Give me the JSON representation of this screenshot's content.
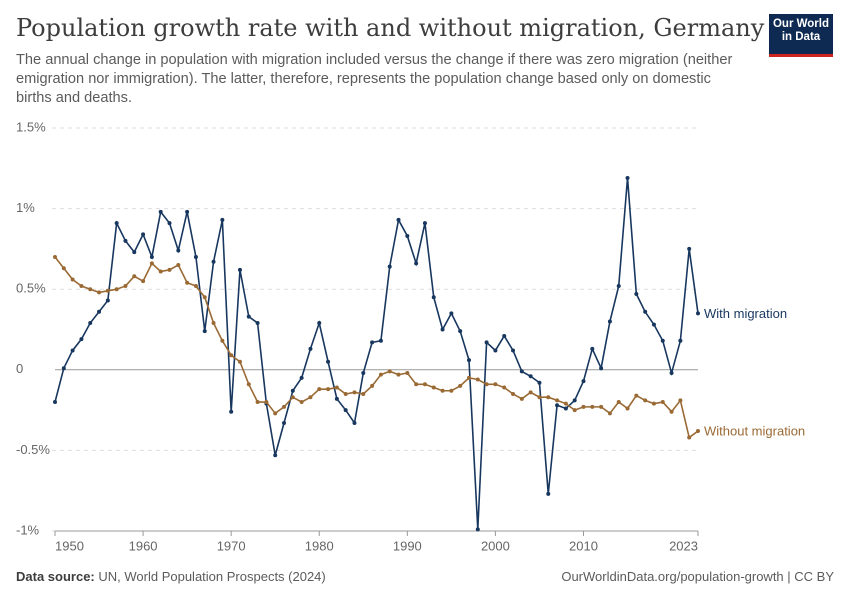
{
  "chart_data": {
    "type": "line",
    "title": "Population growth rate with and without migration, Germany",
    "subtitle": "The annual change in population with migration included versus the change if there was zero migration (neither emigration nor immigration). The latter, therefore, represents the population change based only on domestic births and deaths.",
    "logo": "Our World in Data",
    "source_label": "Data source:",
    "source": "UN, World Population Prospects (2024)",
    "credit": "OurWorldinData.org/population-growth | CC BY",
    "x": [
      1950,
      1951,
      1952,
      1953,
      1954,
      1955,
      1956,
      1957,
      1958,
      1959,
      1960,
      1961,
      1962,
      1963,
      1964,
      1965,
      1966,
      1967,
      1968,
      1969,
      1970,
      1971,
      1972,
      1973,
      1974,
      1975,
      1976,
      1977,
      1978,
      1979,
      1980,
      1981,
      1982,
      1983,
      1984,
      1985,
      1986,
      1987,
      1988,
      1989,
      1990,
      1991,
      1992,
      1993,
      1994,
      1995,
      1996,
      1997,
      1998,
      1999,
      2000,
      2001,
      2002,
      2003,
      2004,
      2005,
      2006,
      2007,
      2008,
      2009,
      2010,
      2011,
      2012,
      2013,
      2014,
      2015,
      2016,
      2017,
      2018,
      2019,
      2020,
      2021,
      2022,
      2023
    ],
    "series": [
      {
        "name": "With migration",
        "color": "#18375f",
        "values": [
          -0.2,
          0.01,
          0.12,
          0.19,
          0.29,
          0.36,
          0.43,
          0.91,
          0.8,
          0.73,
          0.84,
          0.7,
          0.98,
          0.91,
          0.74,
          0.98,
          0.7,
          0.24,
          0.67,
          0.93,
          -0.26,
          0.62,
          0.33,
          0.29,
          -0.21,
          -0.53,
          -0.33,
          -0.13,
          -0.05,
          0.13,
          0.29,
          0.05,
          -0.18,
          -0.25,
          -0.33,
          -0.02,
          0.17,
          0.18,
          0.64,
          0.93,
          0.83,
          0.66,
          0.91,
          0.45,
          0.25,
          0.35,
          0.24,
          0.06,
          -0.99,
          0.17,
          0.12,
          0.21,
          0.12,
          -0.01,
          -0.04,
          -0.08,
          -0.77,
          -0.22,
          -0.24,
          -0.19,
          -0.07,
          0.13,
          0.01,
          0.3,
          0.52,
          1.19,
          0.47,
          0.36,
          0.28,
          0.18,
          -0.02,
          0.18,
          0.75,
          0.35
        ]
      },
      {
        "name": "Without migration",
        "color": "#9a6a35",
        "values": [
          0.7,
          0.63,
          0.56,
          0.52,
          0.5,
          0.48,
          0.49,
          0.5,
          0.52,
          0.58,
          0.55,
          0.66,
          0.61,
          0.62,
          0.65,
          0.54,
          0.52,
          0.45,
          0.29,
          0.18,
          0.09,
          0.05,
          -0.09,
          -0.2,
          -0.2,
          -0.27,
          -0.23,
          -0.17,
          -0.2,
          -0.17,
          -0.12,
          -0.12,
          -0.11,
          -0.15,
          -0.14,
          -0.15,
          -0.1,
          -0.03,
          -0.01,
          -0.03,
          -0.02,
          -0.09,
          -0.09,
          -0.11,
          -0.13,
          -0.13,
          -0.1,
          -0.05,
          -0.06,
          -0.09,
          -0.09,
          -0.11,
          -0.15,
          -0.18,
          -0.14,
          -0.17,
          -0.17,
          -0.19,
          -0.21,
          -0.25,
          -0.23,
          -0.23,
          -0.23,
          -0.27,
          -0.2,
          -0.24,
          -0.16,
          -0.19,
          -0.21,
          -0.2,
          -0.26,
          -0.19,
          -0.42,
          -0.38
        ]
      }
    ],
    "xlim": [
      1950,
      2023
    ],
    "xticks": [
      1950,
      1960,
      1970,
      1980,
      1990,
      2000,
      2010,
      2023
    ],
    "ylim": [
      -1,
      1.5
    ],
    "yticks": [
      {
        "value": -1,
        "label": "-1%"
      },
      {
        "value": -0.5,
        "label": "-0.5%"
      },
      0,
      {
        "value": 0.5,
        "label": "0.5%"
      },
      {
        "value": 1,
        "label": "1%"
      },
      {
        "value": 1.5,
        "label": "1.5%"
      }
    ],
    "grid": true
  }
}
